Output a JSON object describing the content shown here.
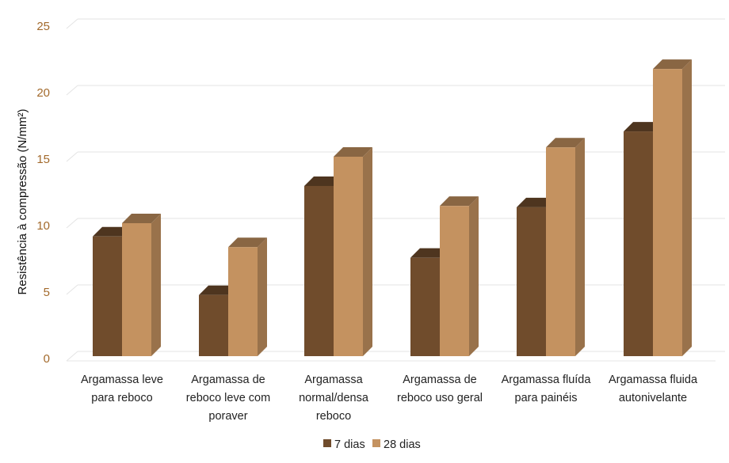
{
  "chart_data": {
    "type": "bar",
    "ylabel": "Resistência à compressão (N/mm²)",
    "ylim": [
      0,
      25
    ],
    "yticks": [
      "0",
      "5",
      "10",
      "15",
      "20",
      "25"
    ],
    "grid": true,
    "legend_position": "bottom",
    "categories": [
      [
        "Argamassa leve",
        "para reboco"
      ],
      [
        "Argamassa de",
        "reboco leve com",
        "poraver"
      ],
      [
        "Argamassa",
        "normal/densa",
        "reboco"
      ],
      [
        "Argamassa de",
        "reboco uso geral"
      ],
      [
        "Argamassa fluída",
        "para painéis"
      ],
      [
        "Argamassa fluida",
        "autonivelante"
      ]
    ],
    "series": [
      {
        "name": "7 dias",
        "values": [
          9.0,
          4.6,
          12.8,
          7.4,
          11.2,
          16.9
        ],
        "color": "#704c2c"
      },
      {
        "name": "28 dias",
        "values": [
          10.0,
          8.2,
          15.0,
          11.3,
          15.7,
          21.6
        ],
        "color": "#c49260"
      }
    ]
  }
}
